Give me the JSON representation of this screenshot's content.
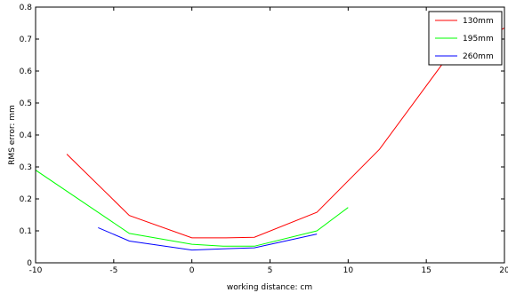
{
  "chart_data": {
    "type": "line",
    "title": "",
    "xlabel": "working distance: cm",
    "ylabel": "RMS error: mm",
    "xlim": [
      -10,
      20
    ],
    "ylim": [
      0,
      0.8
    ],
    "xticks": [
      -10,
      -5,
      0,
      5,
      10,
      15,
      20
    ],
    "yticks": [
      0,
      0.1,
      0.2,
      0.3,
      0.4,
      0.5,
      0.6,
      0.7,
      0.8
    ],
    "xtick_labels": [
      "-10",
      "-5",
      "0",
      "5",
      "10",
      "15",
      "20"
    ],
    "ytick_labels": [
      "0",
      "0.1",
      "0.2",
      "0.3",
      "0.4",
      "0.5",
      "0.6",
      "0.7",
      "0.8"
    ],
    "grid": false,
    "legend_position": "top-right",
    "series": [
      {
        "name": "130mm",
        "color": "#ff0000",
        "x": [
          -8,
          -4,
          0,
          2,
          4,
          8,
          12,
          16,
          20
        ],
        "y": [
          0.34,
          0.148,
          0.078,
          0.078,
          0.08,
          0.158,
          0.355,
          0.62,
          0.735
        ]
      },
      {
        "name": "195mm",
        "color": "#00ff00",
        "x": [
          -10,
          -4,
          0,
          2,
          4,
          8,
          10
        ],
        "y": [
          0.29,
          0.092,
          0.058,
          0.052,
          0.052,
          0.1,
          0.173
        ]
      },
      {
        "name": "260mm",
        "color": "#0000ff",
        "x": [
          -6,
          -4,
          0,
          2,
          4,
          8
        ],
        "y": [
          0.11,
          0.068,
          0.04,
          0.044,
          0.047,
          0.09
        ]
      }
    ]
  }
}
